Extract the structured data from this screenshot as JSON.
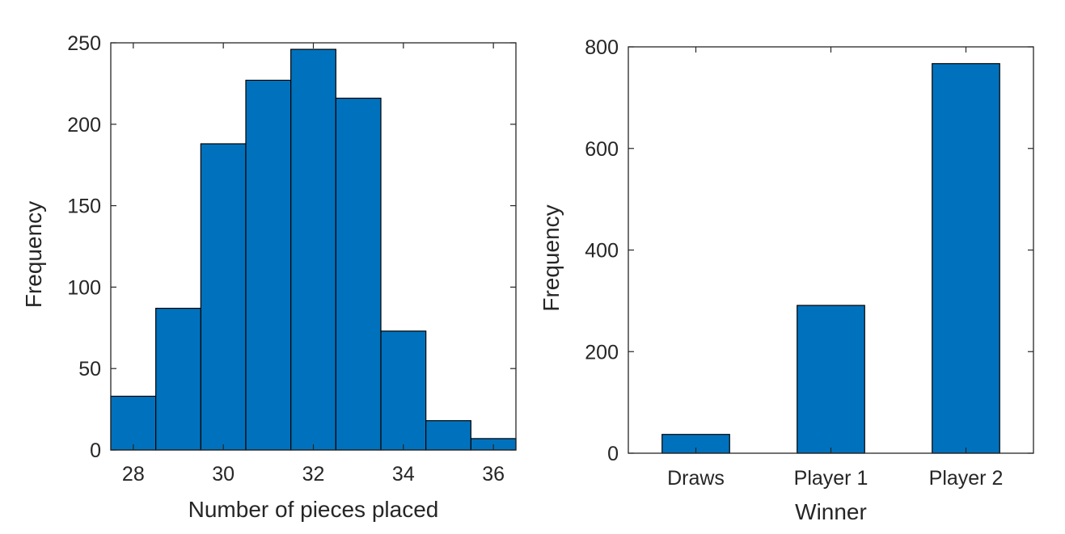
{
  "chart_data": [
    {
      "type": "bar",
      "subtype": "histogram",
      "title": "",
      "xlabel": "Number of pieces placed",
      "ylabel": "Frequency",
      "bin_edges": [
        27.5,
        28.5,
        29.5,
        30.5,
        31.5,
        32.5,
        33.5,
        34.5,
        35.5,
        36.5
      ],
      "values": [
        33,
        87,
        188,
        227,
        246,
        216,
        73,
        18,
        7
      ],
      "xlim": [
        27.5,
        36.5
      ],
      "ylim": [
        0,
        250
      ],
      "xticks": [
        28,
        30,
        32,
        34,
        36
      ],
      "yticks": [
        0,
        50,
        100,
        150,
        200,
        250
      ],
      "bar_color": "#0072BD",
      "grid": false,
      "legend": "none"
    },
    {
      "type": "bar",
      "title": "",
      "xlabel": "Winner",
      "ylabel": "Frequency",
      "categories": [
        "Draws",
        "Player 1",
        "Player 2"
      ],
      "values": [
        37,
        291,
        767
      ],
      "ylim": [
        0,
        800
      ],
      "yticks": [
        0,
        200,
        400,
        600,
        800
      ],
      "bar_color": "#0072BD",
      "grid": false,
      "legend": "none"
    }
  ]
}
